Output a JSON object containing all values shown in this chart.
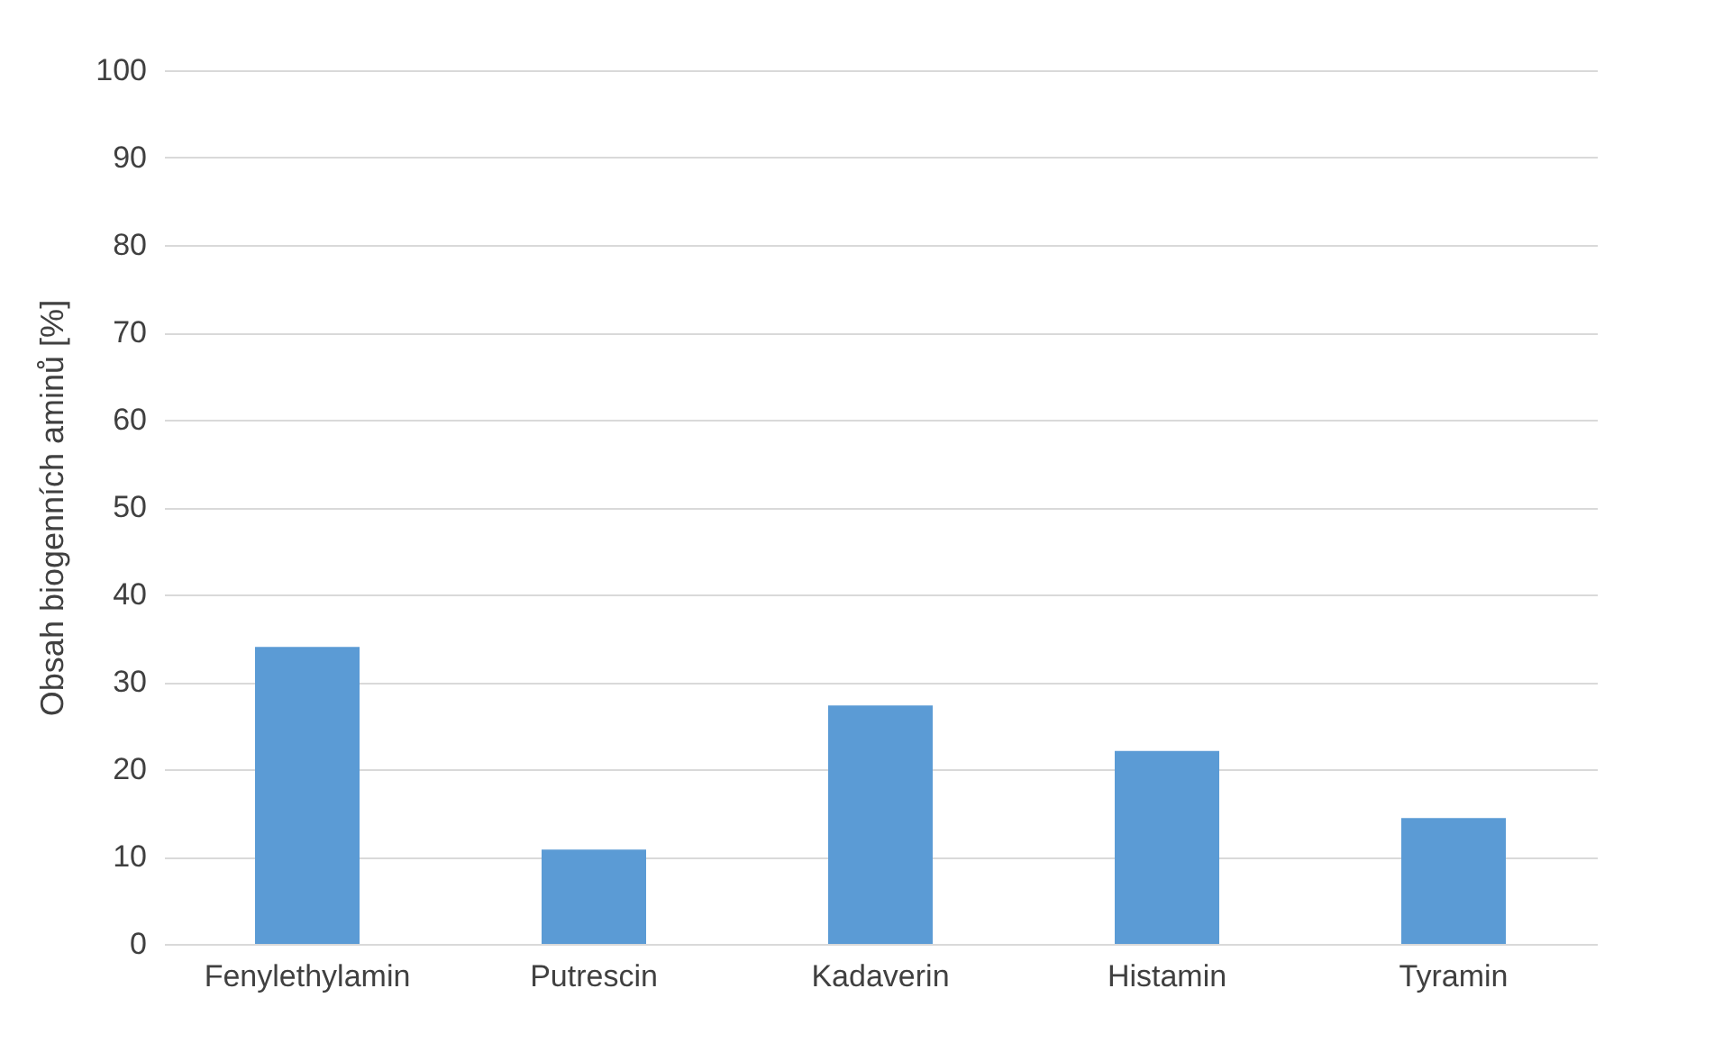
{
  "chart_data": {
    "type": "bar",
    "ylabel": "Obsah biogenních aminů [%]",
    "categories": [
      "Fenylethylamin",
      "Putrescin",
      "Kadaverin",
      "Histamin",
      "Tyramin"
    ],
    "values": [
      34.0,
      10.8,
      27.3,
      22.1,
      14.4
    ],
    "color": "#5b9bd5",
    "ylim": [
      0,
      100
    ],
    "yticks": [
      0,
      10,
      20,
      30,
      40,
      50,
      60,
      70,
      80,
      90,
      100
    ],
    "grid": "y"
  }
}
